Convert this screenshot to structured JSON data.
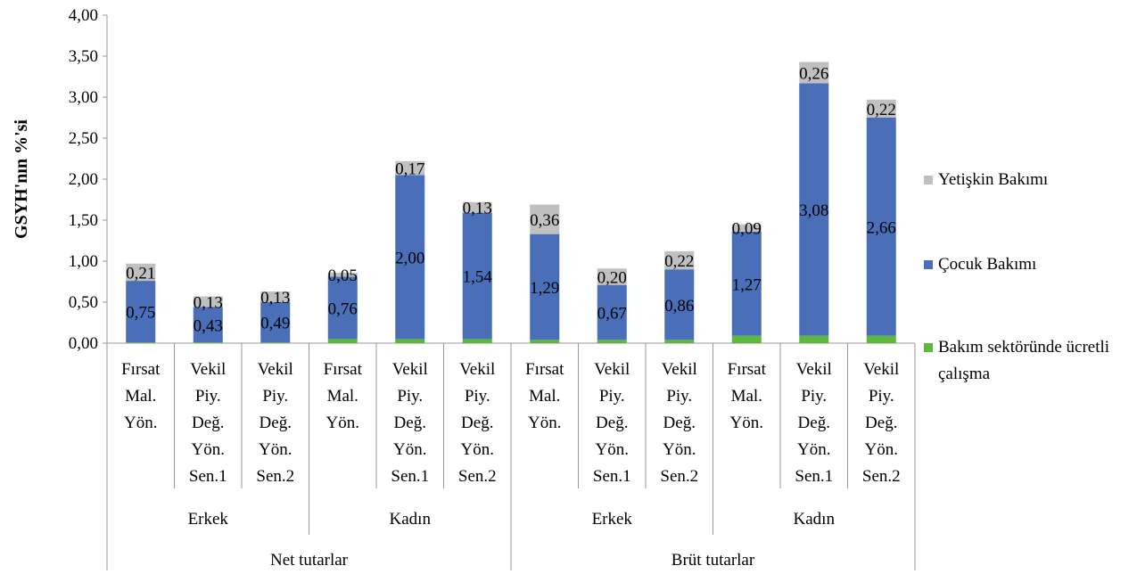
{
  "chart_data": {
    "type": "stacked_bar",
    "y_axis_label": "GSYH'nın %'si",
    "categories": [
      "Fırsat Mal. Yön.",
      "Vekil Piy. Değ. Yön. Sen.1",
      "Vekil Piy. Değ. Yön. Sen.2",
      "Fırsat Mal. Yön.",
      "Vekil Piy. Değ. Yön. Sen.1",
      "Vekil Piy. Değ. Yön. Sen.2",
      "Fırsat Mal. Yön.",
      "Vekil Piy. Değ. Yön. Sen.1",
      "Vekil Piy. Değ. Yön. Sen.2",
      "Fırsat Mal. Yön.",
      "Vekil Piy. Değ. Yön. Sen.1",
      "Vekil Piy. Değ. Yön. Sen.2"
    ],
    "group_labels": [
      "Erkek",
      "Kadın",
      "Erkek",
      "Kadın"
    ],
    "supergroup_labels": [
      "Net tutarlar",
      "Brüt tutarlar"
    ],
    "series": [
      {
        "name": "Bakım sektöründe ücretli çalışma",
        "color": "#5cb83a",
        "values": [
          0.01,
          0.01,
          0.01,
          0.05,
          0.05,
          0.05,
          0.04,
          0.04,
          0.04,
          0.09,
          0.09,
          0.09
        ]
      },
      {
        "name": "Çocuk Bakımı",
        "color": "#4a6fb8",
        "values": [
          0.75,
          0.43,
          0.49,
          0.76,
          2.0,
          1.54,
          1.29,
          0.67,
          0.86,
          1.27,
          3.08,
          2.66
        ],
        "value_labels": [
          "0,75",
          "0,43",
          "0,49",
          "0,76",
          "2,00",
          "1,54",
          "1,29",
          "0,67",
          "0,86",
          "1,27",
          "3,08",
          "2,66"
        ]
      },
      {
        "name": "Yetişkin Bakımı",
        "color": "#c0c0c0",
        "values": [
          0.21,
          0.13,
          0.13,
          0.05,
          0.17,
          0.13,
          0.36,
          0.2,
          0.22,
          0.09,
          0.26,
          0.22
        ],
        "value_labels": [
          "0,21",
          "0,13",
          "0,13",
          "0,05",
          "0,17",
          "0,13",
          "0,36",
          "0,20",
          "0,22",
          "0,09",
          "0,26",
          "0,22"
        ]
      }
    ],
    "ylim": [
      0,
      4
    ],
    "yticks": [
      {
        "value": 0,
        "label": "0,00"
      },
      {
        "value": 0.5,
        "label": "0,50"
      },
      {
        "value": 1,
        "label": "1,00"
      },
      {
        "value": 1.5,
        "label": "1,50"
      },
      {
        "value": 2,
        "label": "2,00"
      },
      {
        "value": 2.5,
        "label": "2,50"
      },
      {
        "value": 3,
        "label": "3,00"
      },
      {
        "value": 3.5,
        "label": "3,50"
      },
      {
        "value": 4,
        "label": "4,00"
      }
    ],
    "legend": "right"
  }
}
